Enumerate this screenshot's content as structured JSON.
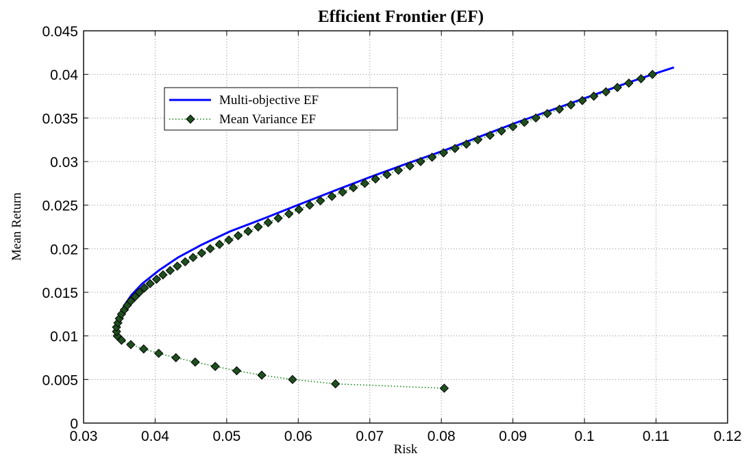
{
  "colors": {
    "multi_objective": "#0000ff",
    "mean_variance_line": "#008000",
    "mean_variance_marker": "#1f4f1f",
    "grid": "#888888",
    "axes": "#000000"
  },
  "chart_data": {
    "type": "line",
    "title": "Efficient Frontier (EF)",
    "xlabel": "Risk",
    "ylabel": "Mean Return",
    "xlim": [
      0.03,
      0.12
    ],
    "ylim": [
      0,
      0.045
    ],
    "x_ticks": [
      0.03,
      0.04,
      0.05,
      0.06,
      0.07,
      0.08,
      0.09,
      0.1,
      0.11,
      0.12
    ],
    "x_tick_labels": [
      "0.03",
      "0.04",
      "0.05",
      "0.06",
      "0.07",
      "0.08",
      "0.09",
      "0.1",
      "0.11",
      "0.12"
    ],
    "y_ticks": [
      0,
      0.005,
      0.01,
      0.015,
      0.02,
      0.025,
      0.03,
      0.035,
      0.04,
      0.045
    ],
    "y_tick_labels": [
      "0",
      "0.005",
      "0.01",
      "0.015",
      "0.02",
      "0.025",
      "0.03",
      "0.035",
      "0.04",
      "0.045"
    ],
    "grid": true,
    "legend_position": "upper-left",
    "series": [
      {
        "name": "Multi-objective EF",
        "style": "solid-line",
        "points": [
          [
            0.0346,
            0.0105
          ],
          [
            0.0347,
            0.0115
          ],
          [
            0.0351,
            0.0125
          ],
          [
            0.0357,
            0.0135
          ],
          [
            0.0367,
            0.0147
          ],
          [
            0.0382,
            0.016
          ],
          [
            0.0405,
            0.0175
          ],
          [
            0.0432,
            0.019
          ],
          [
            0.0466,
            0.0205
          ],
          [
            0.0505,
            0.022
          ],
          [
            0.0553,
            0.0235
          ],
          [
            0.0599,
            0.025
          ],
          [
            0.0652,
            0.0267
          ],
          [
            0.0703,
            0.0283
          ],
          [
            0.0753,
            0.0298
          ],
          [
            0.0805,
            0.0313
          ],
          [
            0.0855,
            0.0329
          ],
          [
            0.0906,
            0.0345
          ],
          [
            0.0957,
            0.036
          ],
          [
            0.1008,
            0.0375
          ],
          [
            0.1059,
            0.039
          ],
          [
            0.1095,
            0.04
          ],
          [
            0.1125,
            0.0408
          ]
        ]
      },
      {
        "name": "Mean Variance EF",
        "style": "dotted-line-diamond-markers",
        "points": [
          [
            0.0804,
            0.004
          ],
          [
            0.0652,
            0.0045
          ],
          [
            0.0592,
            0.005
          ],
          [
            0.0549,
            0.0055
          ],
          [
            0.0514,
            0.006
          ],
          [
            0.0484,
            0.0065
          ],
          [
            0.0456,
            0.007
          ],
          [
            0.0429,
            0.0075
          ],
          [
            0.0405,
            0.008
          ],
          [
            0.0384,
            0.0085
          ],
          [
            0.0366,
            0.009
          ],
          [
            0.0353,
            0.0095
          ],
          [
            0.0347,
            0.01
          ],
          [
            0.0346,
            0.0105
          ],
          [
            0.0346,
            0.011
          ],
          [
            0.0348,
            0.0115
          ],
          [
            0.035,
            0.012
          ],
          [
            0.0353,
            0.0125
          ],
          [
            0.0357,
            0.013
          ],
          [
            0.0361,
            0.0135
          ],
          [
            0.0366,
            0.014
          ],
          [
            0.0372,
            0.0145
          ],
          [
            0.0378,
            0.015
          ],
          [
            0.0385,
            0.0155
          ],
          [
            0.0393,
            0.016
          ],
          [
            0.0402,
            0.0165
          ],
          [
            0.0411,
            0.017
          ],
          [
            0.0421,
            0.0175
          ],
          [
            0.0431,
            0.018
          ],
          [
            0.0442,
            0.0185
          ],
          [
            0.0453,
            0.019
          ],
          [
            0.0465,
            0.0195
          ],
          [
            0.0477,
            0.02
          ],
          [
            0.049,
            0.0205
          ],
          [
            0.0503,
            0.021
          ],
          [
            0.0516,
            0.0215
          ],
          [
            0.053,
            0.022
          ],
          [
            0.0544,
            0.0225
          ],
          [
            0.0558,
            0.023
          ],
          [
            0.0572,
            0.0235
          ],
          [
            0.0587,
            0.024
          ],
          [
            0.0601,
            0.0245
          ],
          [
            0.0616,
            0.025
          ],
          [
            0.0631,
            0.0255
          ],
          [
            0.0647,
            0.026
          ],
          [
            0.0662,
            0.0265
          ],
          [
            0.0677,
            0.027
          ],
          [
            0.0693,
            0.0275
          ],
          [
            0.0708,
            0.028
          ],
          [
            0.0724,
            0.0285
          ],
          [
            0.074,
            0.029
          ],
          [
            0.0756,
            0.0295
          ],
          [
            0.0771,
            0.03
          ],
          [
            0.0787,
            0.0305
          ],
          [
            0.0803,
            0.031
          ],
          [
            0.0819,
            0.0315
          ],
          [
            0.0835,
            0.032
          ],
          [
            0.0851,
            0.0325
          ],
          [
            0.0868,
            0.033
          ],
          [
            0.0884,
            0.0335
          ],
          [
            0.09,
            0.034
          ],
          [
            0.0916,
            0.0345
          ],
          [
            0.0932,
            0.035
          ],
          [
            0.0948,
            0.0355
          ],
          [
            0.0965,
            0.036
          ],
          [
            0.0981,
            0.0365
          ],
          [
            0.0997,
            0.037
          ],
          [
            0.1013,
            0.0375
          ],
          [
            0.103,
            0.038
          ],
          [
            0.1046,
            0.0385
          ],
          [
            0.1062,
            0.039
          ],
          [
            0.1079,
            0.0395
          ],
          [
            0.1095,
            0.04
          ]
        ]
      }
    ]
  }
}
